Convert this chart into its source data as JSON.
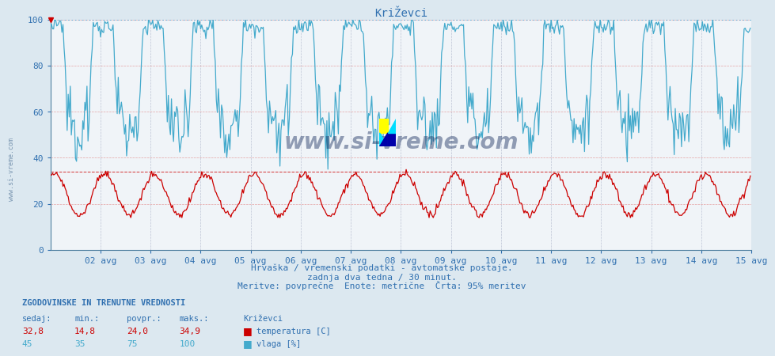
{
  "title": "KriŽevci",
  "bg_color": "#dce8f0",
  "plot_bg_color": "#ffffff",
  "temp_color": "#cc0000",
  "humidity_color": "#44aacc",
  "ref_line_temp": 34.0,
  "ref_line_humidity": 100,
  "ylim": [
    0,
    100
  ],
  "xlim": [
    0,
    672
  ],
  "xtick_positions": [
    48,
    96,
    144,
    192,
    240,
    288,
    336,
    384,
    432,
    480,
    528,
    576,
    624,
    672
  ],
  "xtick_labels": [
    "02 avg",
    "03 avg",
    "04 avg",
    "05 avg",
    "06 avg",
    "07 avg",
    "08 avg",
    "09 avg",
    "10 avg",
    "11 avg",
    "12 avg",
    "13 avg",
    "14 avg",
    "15 avg"
  ],
  "ytick_positions": [
    0,
    20,
    40,
    60,
    80,
    100
  ],
  "ytick_labels": [
    "0",
    "20",
    "40",
    "60",
    "80",
    "100"
  ],
  "subtitle1": "Hrvaška / vremenski podatki - avtomatske postaje.",
  "subtitle2": "zadnja dva tedna / 30 minut.",
  "subtitle3": "Meritve: povprečne  Enote: metrične  Črta: 95% meritev",
  "table_header": "ZGODOVINSKE IN TRENUTNE VREDNOSTI",
  "col_headers": [
    "sedaj:",
    "min.:",
    "povpr.:",
    "maks.:",
    "Križevci"
  ],
  "row_temp": [
    "32,8",
    "14,8",
    "24,0",
    "34,9",
    "temperatura [C]"
  ],
  "row_humidity": [
    "45",
    "35",
    "75",
    "100",
    "vlaga [%]"
  ],
  "temp_legend_color": "#cc0000",
  "humidity_legend_color": "#44aacc",
  "watermark_text": "www.si-vreme.com",
  "watermark_color": "#1a3060",
  "watermark_alpha": 0.45,
  "title_color": "#3070b0",
  "axis_color": "#3070b0",
  "label_color": "#3070b0",
  "table_color": "#3070b0",
  "grid_color_h": "#e08080",
  "grid_color_v": "#b0b0c8"
}
